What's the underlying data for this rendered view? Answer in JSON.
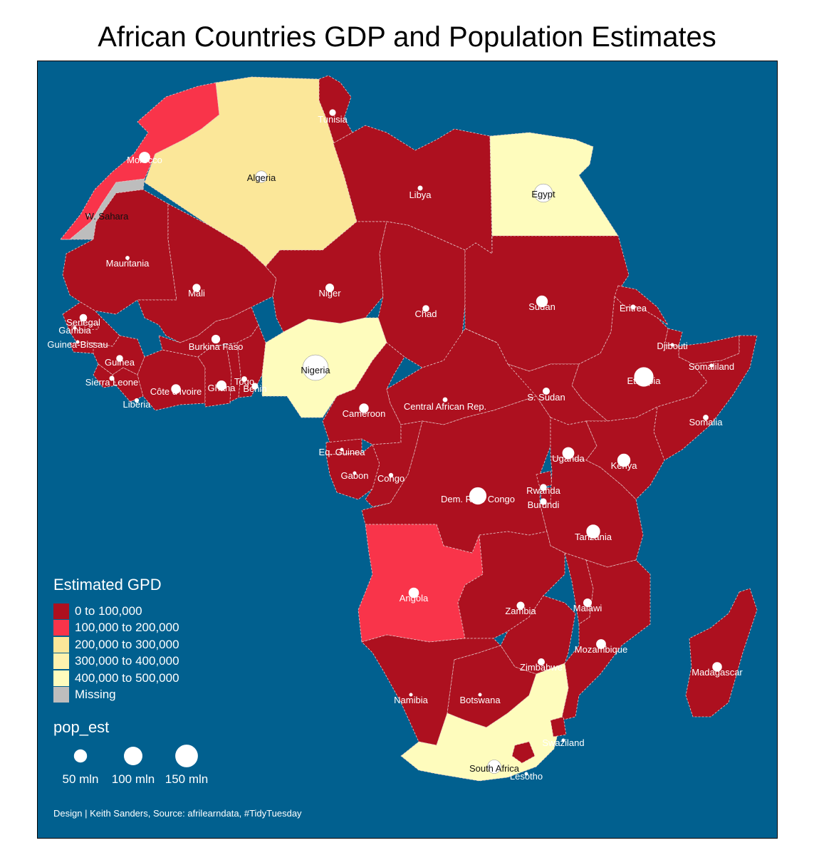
{
  "title": "African Countries GDP and Population Estimates",
  "colors": {
    "ocean": "#01608f",
    "gdp_0_100k": "#ad101f",
    "gdp_100_200k": "#f9344a",
    "gdp_200_300k": "#fbe799",
    "gdp_300_400k": "#fdf2ae",
    "gdp_400_500k": "#fefcbd",
    "missing": "#bdbdbd",
    "border": "#e6c6c6"
  },
  "legend_gdp": {
    "title": "Estimated GPD",
    "items": [
      {
        "label": "0 to 100,000",
        "color": "#ad101f"
      },
      {
        "label": "100,000 to 200,000",
        "color": "#f9344a"
      },
      {
        "label": "200,000 to 300,000",
        "color": "#fbe799"
      },
      {
        "label": "300,000 to 400,000",
        "color": "#fdf2ae"
      },
      {
        "label": "400,000 to 500,000",
        "color": "#fefcbd"
      },
      {
        "label": "Missing",
        "color": "#bdbdbd"
      }
    ]
  },
  "legend_pop": {
    "title": "pop_est",
    "items": [
      {
        "label": "50 mln",
        "value": 50
      },
      {
        "label": "100 mln",
        "value": 100
      },
      {
        "label": "150 mln",
        "value": 150
      }
    ]
  },
  "caption": "Design | Keith Sanders, Source: afrilearndata, #TidyTuesday",
  "countries": [
    {
      "name": "Tunisia",
      "gdp_class": "0-100k",
      "pop_mln": 11
    },
    {
      "name": "Morocco",
      "gdp_class": "100-200k",
      "pop_mln": 34
    },
    {
      "name": "Algeria",
      "gdp_class": "200-300k",
      "pop_mln": 40
    },
    {
      "name": "Libya",
      "gdp_class": "0-100k",
      "pop_mln": 6
    },
    {
      "name": "Egypt",
      "gdp_class": "400-500k",
      "pop_mln": 97
    },
    {
      "name": "W. Sahara",
      "gdp_class": "missing",
      "pop_mln": 0.6
    },
    {
      "name": "Mauritania",
      "gdp_class": "0-100k",
      "pop_mln": 4
    },
    {
      "name": "Mali",
      "gdp_class": "0-100k",
      "pop_mln": 17
    },
    {
      "name": "Niger",
      "gdp_class": "0-100k",
      "pop_mln": 19
    },
    {
      "name": "Chad",
      "gdp_class": "0-100k",
      "pop_mln": 12
    },
    {
      "name": "Sudan",
      "gdp_class": "0-100k",
      "pop_mln": 37
    },
    {
      "name": "Eritrea",
      "gdp_class": "0-100k",
      "pop_mln": 6
    },
    {
      "name": "Djibouti",
      "gdp_class": "0-100k",
      "pop_mln": 0.9
    },
    {
      "name": "Somaliland",
      "gdp_class": "0-100k",
      "pop_mln": 3.5
    },
    {
      "name": "Ethiopia",
      "gdp_class": "0-100k",
      "pop_mln": 105
    },
    {
      "name": "Somalia",
      "gdp_class": "0-100k",
      "pop_mln": 7.5
    },
    {
      "name": "Senegal",
      "gdp_class": "0-100k",
      "pop_mln": 15
    },
    {
      "name": "Gambia",
      "gdp_class": "0-100k",
      "pop_mln": 2
    },
    {
      "name": "Guinea-Bissau",
      "gdp_class": "0-100k",
      "pop_mln": 1.8
    },
    {
      "name": "Guinea",
      "gdp_class": "0-100k",
      "pop_mln": 12
    },
    {
      "name": "Sierra Leone",
      "gdp_class": "0-100k",
      "pop_mln": 6
    },
    {
      "name": "Liberia",
      "gdp_class": "0-100k",
      "pop_mln": 4.7
    },
    {
      "name": "Côte d'Ivoire",
      "gdp_class": "0-100k",
      "pop_mln": 24
    },
    {
      "name": "Burkina Faso",
      "gdp_class": "0-100k",
      "pop_mln": 20
    },
    {
      "name": "Ghana",
      "gdp_class": "0-100k",
      "pop_mln": 27
    },
    {
      "name": "Togo",
      "gdp_class": "0-100k",
      "pop_mln": 7.9
    },
    {
      "name": "Benin",
      "gdp_class": "0-100k",
      "pop_mln": 11
    },
    {
      "name": "Nigeria",
      "gdp_class": "400-500k",
      "pop_mln": 190
    },
    {
      "name": "Cameroon",
      "gdp_class": "0-100k",
      "pop_mln": 24
    },
    {
      "name": "Central African Rep.",
      "gdp_class": "0-100k",
      "pop_mln": 5.6
    },
    {
      "name": "S. Sudan",
      "gdp_class": "0-100k",
      "pop_mln": 13
    },
    {
      "name": "Eq. Guinea",
      "gdp_class": "0-100k",
      "pop_mln": 0.8
    },
    {
      "name": "Gabon",
      "gdp_class": "0-100k",
      "pop_mln": 1.8
    },
    {
      "name": "Congo",
      "gdp_class": "0-100k",
      "pop_mln": 4.9
    },
    {
      "name": "Dem. Rep. Congo",
      "gdp_class": "0-100k",
      "pop_mln": 83
    },
    {
      "name": "Uganda",
      "gdp_class": "0-100k",
      "pop_mln": 39
    },
    {
      "name": "Kenya",
      "gdp_class": "0-100k",
      "pop_mln": 47
    },
    {
      "name": "Rwanda",
      "gdp_class": "0-100k",
      "pop_mln": 12
    },
    {
      "name": "Burundi",
      "gdp_class": "0-100k",
      "pop_mln": 11
    },
    {
      "name": "Tanzania",
      "gdp_class": "0-100k",
      "pop_mln": 53
    },
    {
      "name": "Angola",
      "gdp_class": "100-200k",
      "pop_mln": 29
    },
    {
      "name": "Zambia",
      "gdp_class": "0-100k",
      "pop_mln": 16
    },
    {
      "name": "Malawi",
      "gdp_class": "0-100k",
      "pop_mln": 19
    },
    {
      "name": "Mozambique",
      "gdp_class": "0-100k",
      "pop_mln": 26
    },
    {
      "name": "Zimbabwe",
      "gdp_class": "0-100k",
      "pop_mln": 13
    },
    {
      "name": "Madagascar",
      "gdp_class": "0-100k",
      "pop_mln": 25
    },
    {
      "name": "Namibia",
      "gdp_class": "0-100k",
      "pop_mln": 2.5
    },
    {
      "name": "Botswana",
      "gdp_class": "0-100k",
      "pop_mln": 2.2
    },
    {
      "name": "South Africa",
      "gdp_class": "400-500k",
      "pop_mln": 54
    },
    {
      "name": "Swaziland",
      "gdp_class": "0-100k",
      "pop_mln": 1.4
    },
    {
      "name": "Lesotho",
      "gdp_class": "0-100k",
      "pop_mln": 2
    }
  ]
}
